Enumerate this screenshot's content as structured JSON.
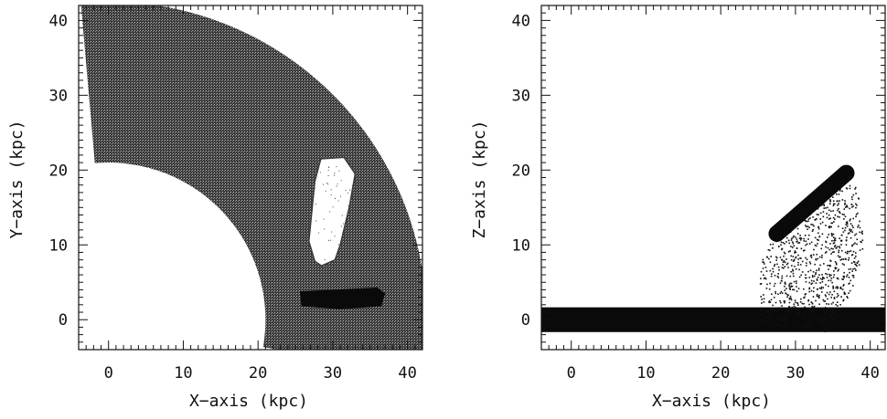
{
  "chart_data": [
    {
      "type": "scatter",
      "id": "xy",
      "xlabel": "X−axis (kpc)",
      "ylabel": "Y−axis (kpc)",
      "xlim": [
        -4,
        42
      ],
      "ylim": [
        -4,
        42
      ],
      "xticks": [
        0,
        10,
        20,
        30,
        40
      ],
      "yticks": [
        0,
        10,
        20,
        30,
        40
      ],
      "grid": false,
      "series": [
        {
          "shape": "annulus-quadrant",
          "inner_radius": 21,
          "outer_radius": 42.5,
          "angle_range_deg": [
            -10,
            95
          ],
          "color": "#2b2b2b"
        },
        {
          "shape": "cavity",
          "polygon": [
            [
              28.4,
              21.5
            ],
            [
              31.5,
              21.7
            ],
            [
              33.0,
              19.5
            ],
            [
              32.2,
              15.0
            ],
            [
              31.0,
              10.0
            ],
            [
              30.3,
              8.0
            ],
            [
              28.5,
              7.2
            ],
            [
              27.6,
              7.8
            ],
            [
              26.8,
              10.5
            ],
            [
              27.2,
              14.5
            ],
            [
              27.6,
              18.5
            ]
          ],
          "color": "#ffffff"
        },
        {
          "shape": "dense-clump",
          "polygon": [
            [
              25.6,
              3.8
            ],
            [
              36.0,
              4.3
            ],
            [
              37.0,
              3.5
            ],
            [
              36.5,
              1.8
            ],
            [
              31.0,
              1.4
            ],
            [
              25.8,
              1.8
            ]
          ],
          "color": "#0a0a0a"
        }
      ]
    },
    {
      "type": "scatter",
      "id": "xz",
      "xlabel": "X−axis (kpc)",
      "ylabel": "Z−axis (kpc)",
      "xlim": [
        -4,
        42
      ],
      "ylim": [
        -4,
        42
      ],
      "xticks": [
        0,
        10,
        20,
        30,
        40
      ],
      "yticks": [
        0,
        10,
        20,
        30,
        40
      ],
      "grid": false,
      "series": [
        {
          "shape": "thin-disk",
          "x_range": [
            -4,
            42
          ],
          "z_range": [
            -0.8,
            0.8
          ],
          "color": "#0a0a0a"
        },
        {
          "shape": "diffuse-cloud",
          "polygon": [
            [
              24.5,
              0
            ],
            [
              25.5,
              8
            ],
            [
              27.5,
              13
            ],
            [
              31,
              16
            ],
            [
              35,
              19.5
            ],
            [
              37.5,
              20
            ],
            [
              38.5,
              16
            ],
            [
              39,
              10
            ],
            [
              38,
              5
            ],
            [
              36,
              1
            ],
            [
              34,
              -1.5
            ],
            [
              30,
              -1
            ],
            [
              26,
              -0.5
            ]
          ],
          "density": 0.35,
          "color": "#111111"
        },
        {
          "shape": "dense-stream",
          "from": [
            27.5,
            11.5
          ],
          "to": [
            36.8,
            19.6
          ],
          "width": 2.2,
          "color": "#0a0a0a"
        }
      ]
    }
  ]
}
